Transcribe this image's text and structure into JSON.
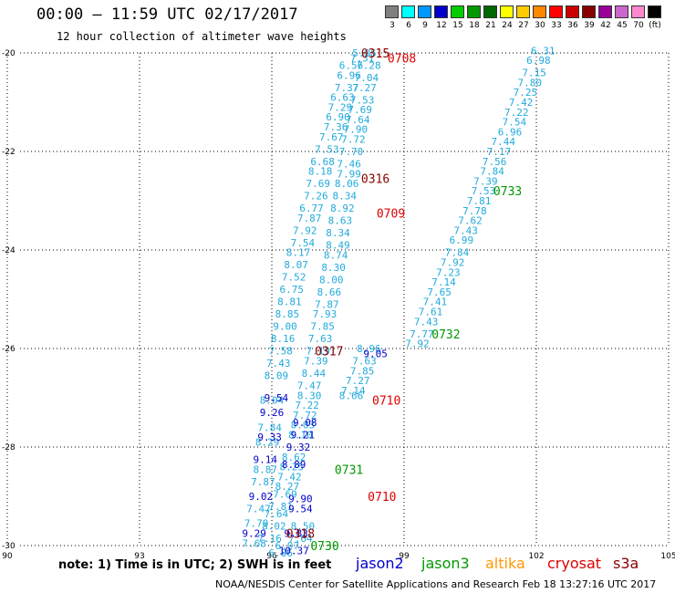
{
  "title": "00:00 – 11:59 UTC 02/17/2017",
  "subtitle": "12 hour collection of altimeter wave heights",
  "legend": {
    "colors": [
      "#808080",
      "#00ffff",
      "#0099ff",
      "#0000cc",
      "#00cc00",
      "#009900",
      "#006600",
      "#ffff00",
      "#ffcc00",
      "#ff8800",
      "#ff0000",
      "#cc0000",
      "#880000",
      "#990099",
      "#cc66cc",
      "#ff88cc",
      "#000000"
    ],
    "labels": [
      "3",
      "6",
      "9",
      "12",
      "15",
      "18",
      "21",
      "24",
      "27",
      "30",
      "33",
      "36",
      "39",
      "42",
      "45",
      "70",
      "(ft)"
    ]
  },
  "note": "note: 1) Time is in UTC; 2) SWH is in feet",
  "missions": [
    {
      "name": "jason2",
      "color": "#0000cc"
    },
    {
      "name": "jason3",
      "color": "#009900"
    },
    {
      "name": "altika",
      "color": "#ff9900"
    },
    {
      "name": "cryosat",
      "color": "#dd0000"
    },
    {
      "name": "s3a",
      "color": "#880000"
    }
  ],
  "footer": "NOAA/NESDIS Center for Satellite Applications and Research    Feb 18 13:27:16 UTC 2017",
  "chart_data": {
    "type": "scatter",
    "x_ticks": [
      90,
      93,
      96,
      99,
      102,
      105
    ],
    "y_ticks": [
      -20,
      -22,
      -24,
      -26,
      -28,
      -30
    ],
    "xlim": [
      90,
      105
    ],
    "ylim": [
      -30,
      -20
    ],
    "grid": true,
    "colors": {
      "light": "#22aadd",
      "dark": "#0000cc"
    },
    "tracks": [
      {
        "color": "light",
        "points": [
          [
            98.1,
            -20.0,
            "5.95"
          ],
          [
            98.05,
            -20.1,
            "7.31"
          ],
          [
            98.2,
            -20.25,
            "7.28"
          ],
          [
            97.8,
            -20.25,
            "6.56"
          ],
          [
            97.75,
            -20.45,
            "6.96"
          ],
          [
            98.15,
            -20.5,
            "7.04"
          ],
          [
            97.7,
            -20.7,
            "7.37"
          ],
          [
            98.1,
            -20.7,
            "7.27"
          ],
          [
            97.6,
            -20.9,
            "6.63"
          ],
          [
            98.05,
            -20.95,
            "7.53"
          ],
          [
            97.55,
            -21.1,
            "7.29"
          ],
          [
            98.0,
            -21.15,
            "7.69"
          ],
          [
            97.5,
            -21.3,
            "6.90"
          ],
          [
            97.95,
            -21.35,
            "7.64"
          ],
          [
            97.45,
            -21.5,
            "7.36"
          ],
          [
            97.9,
            -21.55,
            "7.90"
          ],
          [
            97.35,
            -21.7,
            "7.67"
          ],
          [
            97.85,
            -21.75,
            "7.72"
          ],
          [
            97.25,
            -21.95,
            "7.53"
          ],
          [
            97.8,
            -22.0,
            "7.70"
          ],
          [
            97.15,
            -22.2,
            "6.68"
          ],
          [
            97.75,
            -22.25,
            "7.46"
          ],
          [
            97.1,
            -22.4,
            "8.18"
          ],
          [
            97.75,
            -22.45,
            "7.99"
          ],
          [
            97.05,
            -22.65,
            "7.69"
          ],
          [
            97.7,
            -22.65,
            "8.06"
          ],
          [
            97.0,
            -22.9,
            "7.26"
          ],
          [
            97.65,
            -22.9,
            "8.34"
          ],
          [
            96.9,
            -23.15,
            "6.77"
          ],
          [
            97.6,
            -23.15,
            "8.92"
          ],
          [
            96.85,
            -23.35,
            "7.87"
          ],
          [
            97.55,
            -23.4,
            "8.63"
          ],
          [
            96.75,
            -23.6,
            "7.92"
          ],
          [
            97.5,
            -23.65,
            "8.34"
          ],
          [
            96.7,
            -23.85,
            "7.54"
          ],
          [
            97.5,
            -23.9,
            "8.49"
          ],
          [
            96.6,
            -24.05,
            "8.17"
          ],
          [
            97.45,
            -24.1,
            "8.74"
          ],
          [
            96.55,
            -24.3,
            "8.07"
          ],
          [
            97.4,
            -24.35,
            "8.30"
          ],
          [
            96.5,
            -24.55,
            "7.52"
          ],
          [
            97.35,
            -24.6,
            "8.00"
          ],
          [
            96.45,
            -24.8,
            "6.75"
          ],
          [
            97.3,
            -24.85,
            "8.66"
          ],
          [
            96.4,
            -25.05,
            "8.81"
          ],
          [
            97.25,
            -25.1,
            "7.87"
          ],
          [
            96.35,
            -25.3,
            "8.85"
          ],
          [
            97.2,
            -25.3,
            "7.93"
          ],
          [
            96.3,
            -25.55,
            "9.00"
          ],
          [
            97.15,
            -25.55,
            "7.85"
          ],
          [
            96.25,
            -25.8,
            "8.16"
          ],
          [
            97.1,
            -25.8,
            "7.63"
          ],
          [
            96.2,
            -26.05,
            "7.58"
          ],
          [
            97.05,
            -26.05,
            "7.19"
          ],
          [
            96.15,
            -26.3,
            "7.43"
          ],
          [
            97.0,
            -26.25,
            "7.39"
          ],
          [
            96.1,
            -26.55,
            "8.09"
          ],
          [
            96.95,
            -26.5,
            "8.44"
          ],
          [
            96.85,
            -26.75,
            "7.47"
          ],
          [
            96.85,
            -26.95,
            "8.30"
          ],
          [
            96.8,
            -27.15,
            "7.22"
          ],
          [
            96.75,
            -27.35,
            "7.72"
          ],
          [
            96.7,
            -27.55,
            "8.03"
          ],
          [
            96.65,
            -27.75,
            "8.10"
          ],
          [
            96.0,
            -27.05,
            "8.04"
          ],
          [
            95.95,
            -27.6,
            "7.84"
          ],
          [
            95.9,
            -27.9,
            "8.29"
          ],
          [
            95.85,
            -28.45,
            "8.87"
          ],
          [
            95.8,
            -28.7,
            "7.87"
          ],
          [
            95.7,
            -29.25,
            "7.47"
          ],
          [
            95.65,
            -29.55,
            "7.79"
          ],
          [
            95.6,
            -29.95,
            "7.68"
          ],
          [
            96.5,
            -28.2,
            "8.62"
          ],
          [
            96.45,
            -28.4,
            "8.25"
          ],
          [
            96.4,
            -28.6,
            "7.42"
          ],
          [
            96.35,
            -28.8,
            "8.27"
          ],
          [
            96.3,
            -28.95,
            "7.69"
          ],
          [
            96.2,
            -29.2,
            "7.81"
          ],
          [
            96.1,
            -29.35,
            "7.64"
          ],
          [
            96.05,
            -29.6,
            "8.02"
          ],
          [
            95.95,
            -29.85,
            "7.16"
          ],
          [
            96.7,
            -29.6,
            "8.50"
          ],
          [
            96.65,
            -29.85,
            "7.64"
          ],
          [
            96.35,
            -30.0,
            "6.97"
          ],
          [
            96.2,
            -30.15,
            "6.86"
          ],
          [
            98.2,
            -26.0,
            "8.96"
          ],
          [
            98.1,
            -26.25,
            "7.63"
          ],
          [
            98.05,
            -26.45,
            "7.85"
          ],
          [
            97.95,
            -26.65,
            "7.27"
          ],
          [
            97.85,
            -26.85,
            "7.14"
          ],
          [
            97.8,
            -26.95,
            "8.66"
          ],
          [
            102.15,
            -19.95,
            "6.31"
          ],
          [
            102.05,
            -20.15,
            "6.98"
          ],
          [
            101.95,
            -20.4,
            "7.15"
          ],
          [
            101.85,
            -20.6,
            "7.80"
          ],
          [
            101.75,
            -20.8,
            "7.25"
          ],
          [
            101.65,
            -21.0,
            "7.42"
          ],
          [
            101.55,
            -21.2,
            "7.22"
          ],
          [
            101.5,
            -21.4,
            "7.54"
          ],
          [
            101.4,
            -21.6,
            "6.96"
          ],
          [
            101.25,
            -21.8,
            "7.44"
          ],
          [
            101.15,
            -22.0,
            "7.17"
          ],
          [
            101.05,
            -22.2,
            "7.56"
          ],
          [
            101.0,
            -22.4,
            "7.84"
          ],
          [
            100.85,
            -22.6,
            "7.39"
          ],
          [
            100.8,
            -22.8,
            "7.53"
          ],
          [
            100.7,
            -23.0,
            "7.81"
          ],
          [
            100.6,
            -23.2,
            "7.78"
          ],
          [
            100.5,
            -23.4,
            "7.62"
          ],
          [
            100.4,
            -23.6,
            "7.43"
          ],
          [
            100.3,
            -23.8,
            "6.99"
          ],
          [
            100.2,
            -24.05,
            "7.84"
          ],
          [
            100.1,
            -24.25,
            "7.92"
          ],
          [
            100.0,
            -24.45,
            "7.23"
          ],
          [
            99.9,
            -24.65,
            "7.14"
          ],
          [
            99.8,
            -24.85,
            "7.65"
          ],
          [
            99.7,
            -25.05,
            "7.41"
          ],
          [
            99.6,
            -25.25,
            "7.61"
          ],
          [
            99.5,
            -25.45,
            "7.43"
          ],
          [
            99.4,
            -25.7,
            "7.77"
          ],
          [
            99.3,
            -25.9,
            "7.92"
          ]
        ]
      },
      {
        "color": "dark",
        "points": [
          [
            98.35,
            -26.1,
            "9.05"
          ],
          [
            96.1,
            -27.0,
            "9.54"
          ],
          [
            96.0,
            -27.3,
            "9.26"
          ],
          [
            95.95,
            -27.8,
            "9.33"
          ],
          [
            95.85,
            -28.25,
            "9.14"
          ],
          [
            95.75,
            -29.0,
            "9.02"
          ],
          [
            95.6,
            -29.75,
            "9.29"
          ],
          [
            96.75,
            -27.5,
            "9.08"
          ],
          [
            96.7,
            -27.75,
            "9.21"
          ],
          [
            96.6,
            -28.0,
            "9.32"
          ],
          [
            96.5,
            -28.35,
            "8.89"
          ],
          [
            96.65,
            -29.05,
            "9.90"
          ],
          [
            96.65,
            -29.25,
            "9.54"
          ],
          [
            96.55,
            -29.75,
            "9.83"
          ],
          [
            96.5,
            -30.1,
            "10.37"
          ]
        ]
      }
    ],
    "time_labels": [
      {
        "x": 98.35,
        "y": -20.0,
        "text": "0315",
        "color": "#880000"
      },
      {
        "x": 98.95,
        "y": -20.1,
        "text": "0708",
        "color": "#dd0000"
      },
      {
        "x": 98.35,
        "y": -22.55,
        "text": "0316",
        "color": "#880000"
      },
      {
        "x": 98.7,
        "y": -23.25,
        "text": "0709",
        "color": "#dd0000"
      },
      {
        "x": 101.35,
        "y": -22.8,
        "text": "0733",
        "color": "#009900"
      },
      {
        "x": 99.95,
        "y": -25.7,
        "text": "0732",
        "color": "#009900"
      },
      {
        "x": 97.3,
        "y": -26.05,
        "text": "0317",
        "color": "#880000"
      },
      {
        "x": 98.6,
        "y": -27.05,
        "text": "0710",
        "color": "#dd0000"
      },
      {
        "x": 97.75,
        "y": -28.45,
        "text": "0731",
        "color": "#009900"
      },
      {
        "x": 98.5,
        "y": -29.0,
        "text": "0710",
        "color": "#dd0000"
      },
      {
        "x": 96.65,
        "y": -29.75,
        "text": "0318",
        "color": "#880000"
      },
      {
        "x": 97.2,
        "y": -30.0,
        "text": "0730",
        "color": "#009900"
      }
    ]
  }
}
